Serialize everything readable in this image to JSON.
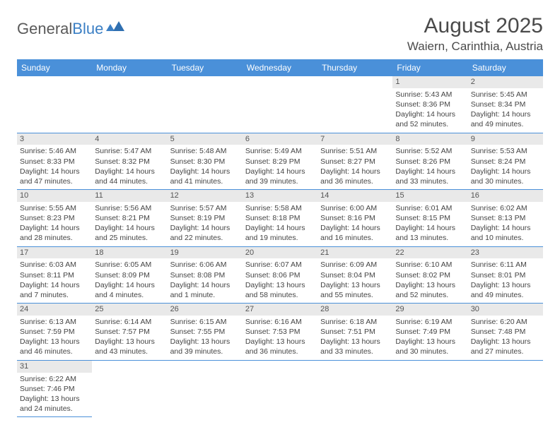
{
  "logo": {
    "part1": "General",
    "part2": "Blue"
  },
  "title": "August 2025",
  "location": "Waiern, Carinthia, Austria",
  "colors": {
    "header_bg": "#4a90d9",
    "header_text": "#ffffff",
    "daynum_bg": "#e9e9e9",
    "text": "#444444",
    "divider": "#4a90d9",
    "logo_gray": "#5a5a5a",
    "logo_blue": "#3b7fc4"
  },
  "weekdays": [
    "Sunday",
    "Monday",
    "Tuesday",
    "Wednesday",
    "Thursday",
    "Friday",
    "Saturday"
  ],
  "first_weekday_index": 5,
  "days": [
    {
      "n": 1,
      "sr": "5:43 AM",
      "ss": "8:36 PM",
      "dl": "14 hours and 52 minutes."
    },
    {
      "n": 2,
      "sr": "5:45 AM",
      "ss": "8:34 PM",
      "dl": "14 hours and 49 minutes."
    },
    {
      "n": 3,
      "sr": "5:46 AM",
      "ss": "8:33 PM",
      "dl": "14 hours and 47 minutes."
    },
    {
      "n": 4,
      "sr": "5:47 AM",
      "ss": "8:32 PM",
      "dl": "14 hours and 44 minutes."
    },
    {
      "n": 5,
      "sr": "5:48 AM",
      "ss": "8:30 PM",
      "dl": "14 hours and 41 minutes."
    },
    {
      "n": 6,
      "sr": "5:49 AM",
      "ss": "8:29 PM",
      "dl": "14 hours and 39 minutes."
    },
    {
      "n": 7,
      "sr": "5:51 AM",
      "ss": "8:27 PM",
      "dl": "14 hours and 36 minutes."
    },
    {
      "n": 8,
      "sr": "5:52 AM",
      "ss": "8:26 PM",
      "dl": "14 hours and 33 minutes."
    },
    {
      "n": 9,
      "sr": "5:53 AM",
      "ss": "8:24 PM",
      "dl": "14 hours and 30 minutes."
    },
    {
      "n": 10,
      "sr": "5:55 AM",
      "ss": "8:23 PM",
      "dl": "14 hours and 28 minutes."
    },
    {
      "n": 11,
      "sr": "5:56 AM",
      "ss": "8:21 PM",
      "dl": "14 hours and 25 minutes."
    },
    {
      "n": 12,
      "sr": "5:57 AM",
      "ss": "8:19 PM",
      "dl": "14 hours and 22 minutes."
    },
    {
      "n": 13,
      "sr": "5:58 AM",
      "ss": "8:18 PM",
      "dl": "14 hours and 19 minutes."
    },
    {
      "n": 14,
      "sr": "6:00 AM",
      "ss": "8:16 PM",
      "dl": "14 hours and 16 minutes."
    },
    {
      "n": 15,
      "sr": "6:01 AM",
      "ss": "8:15 PM",
      "dl": "14 hours and 13 minutes."
    },
    {
      "n": 16,
      "sr": "6:02 AM",
      "ss": "8:13 PM",
      "dl": "14 hours and 10 minutes."
    },
    {
      "n": 17,
      "sr": "6:03 AM",
      "ss": "8:11 PM",
      "dl": "14 hours and 7 minutes."
    },
    {
      "n": 18,
      "sr": "6:05 AM",
      "ss": "8:09 PM",
      "dl": "14 hours and 4 minutes."
    },
    {
      "n": 19,
      "sr": "6:06 AM",
      "ss": "8:08 PM",
      "dl": "14 hours and 1 minute."
    },
    {
      "n": 20,
      "sr": "6:07 AM",
      "ss": "8:06 PM",
      "dl": "13 hours and 58 minutes."
    },
    {
      "n": 21,
      "sr": "6:09 AM",
      "ss": "8:04 PM",
      "dl": "13 hours and 55 minutes."
    },
    {
      "n": 22,
      "sr": "6:10 AM",
      "ss": "8:02 PM",
      "dl": "13 hours and 52 minutes."
    },
    {
      "n": 23,
      "sr": "6:11 AM",
      "ss": "8:01 PM",
      "dl": "13 hours and 49 minutes."
    },
    {
      "n": 24,
      "sr": "6:13 AM",
      "ss": "7:59 PM",
      "dl": "13 hours and 46 minutes."
    },
    {
      "n": 25,
      "sr": "6:14 AM",
      "ss": "7:57 PM",
      "dl": "13 hours and 43 minutes."
    },
    {
      "n": 26,
      "sr": "6:15 AM",
      "ss": "7:55 PM",
      "dl": "13 hours and 39 minutes."
    },
    {
      "n": 27,
      "sr": "6:16 AM",
      "ss": "7:53 PM",
      "dl": "13 hours and 36 minutes."
    },
    {
      "n": 28,
      "sr": "6:18 AM",
      "ss": "7:51 PM",
      "dl": "13 hours and 33 minutes."
    },
    {
      "n": 29,
      "sr": "6:19 AM",
      "ss": "7:49 PM",
      "dl": "13 hours and 30 minutes."
    },
    {
      "n": 30,
      "sr": "6:20 AM",
      "ss": "7:48 PM",
      "dl": "13 hours and 27 minutes."
    },
    {
      "n": 31,
      "sr": "6:22 AM",
      "ss": "7:46 PM",
      "dl": "13 hours and 24 minutes."
    }
  ],
  "labels": {
    "sunrise": "Sunrise:",
    "sunset": "Sunset:",
    "daylight": "Daylight:"
  }
}
